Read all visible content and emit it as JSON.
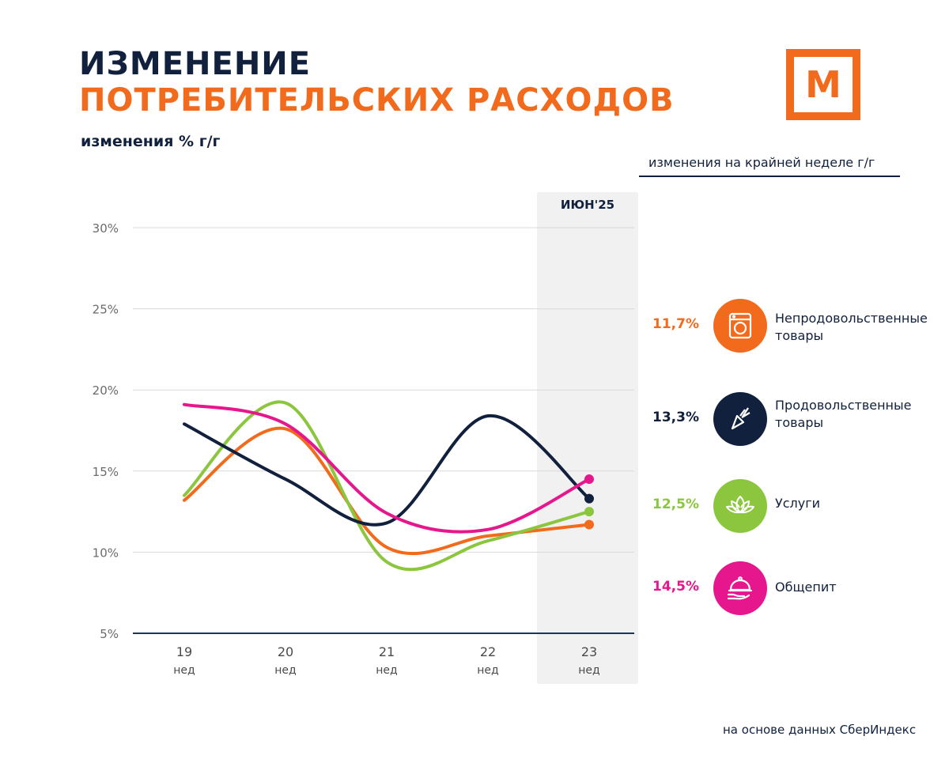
{
  "header": {
    "title_line1": "ИЗМЕНЕНИЕ",
    "title_line2": "ПОТРЕБИТЕЛЬСКИХ РАСХОДОВ",
    "subtitle": "изменения % г/г",
    "logo_letter": "М"
  },
  "legend": {
    "caption": "изменения на крайней неделе г/г",
    "items": [
      {
        "value": "11,7%",
        "label_line1": "Непродовольственные",
        "label_line2": "товары",
        "color": "#f26a1b",
        "icon": "washing-machine-icon"
      },
      {
        "value": "13,3%",
        "label_line1": "Продовольственные",
        "label_line2": "товары",
        "color": "#10203d",
        "icon": "carrot-icon"
      },
      {
        "value": "12,5%",
        "label_line1": "Услуги",
        "label_line2": "",
        "color": "#8cc63f",
        "icon": "lotus-icon"
      },
      {
        "value": "14,5%",
        "label_line1": "Общепит",
        "label_line2": "",
        "color": "#e6168c",
        "icon": "cloche-icon"
      }
    ]
  },
  "highlight": {
    "label": "ИЮН'25"
  },
  "source": "на основе данных СберИндекс",
  "chart_data": {
    "type": "line",
    "title": "ИЗМЕНЕНИЕ ПОТРЕБИТЕЛЬСКИХ РАСХОДОВ",
    "ylabel": "изменения % г/г",
    "xlabel": "",
    "categories": [
      "19",
      "20",
      "21",
      "22",
      "23"
    ],
    "category_sublabel": "нед",
    "ylim": [
      5,
      30
    ],
    "yticks": [
      5,
      10,
      15,
      20,
      25,
      30
    ],
    "ytick_labels": [
      "5%",
      "10%",
      "15%",
      "20%",
      "25%",
      "30%"
    ],
    "grid": true,
    "series": [
      {
        "name": "Непродовольственные товары",
        "color": "#f26a1b",
        "values": [
          13.2,
          17.6,
          10.3,
          11.0,
          11.7
        ]
      },
      {
        "name": "Продовольственные товары",
        "color": "#10203d",
        "values": [
          17.9,
          14.5,
          11.8,
          18.4,
          13.3
        ]
      },
      {
        "name": "Услуги",
        "color": "#8cc63f",
        "values": [
          13.5,
          19.2,
          9.4,
          10.7,
          12.5
        ]
      },
      {
        "name": "Общепит",
        "color": "#e6168c",
        "values": [
          19.1,
          17.9,
          12.4,
          11.4,
          14.5
        ]
      }
    ]
  }
}
